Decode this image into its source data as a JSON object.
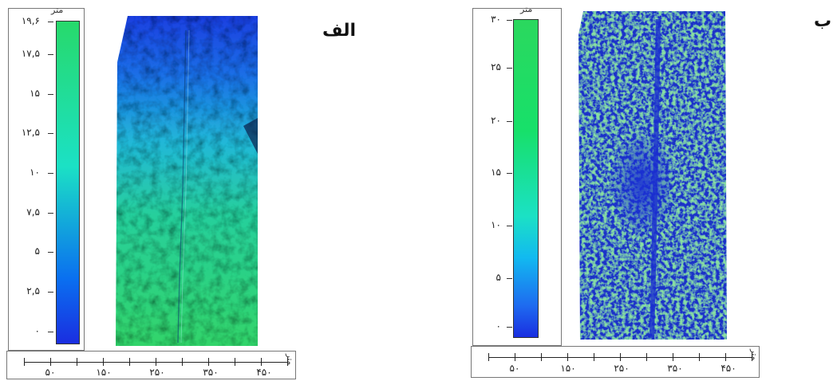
{
  "panels": [
    {
      "id": "alef",
      "label": "الف",
      "legend": {
        "unit": "متر",
        "ticks": [
          "۱۹,۶",
          "۱۷,۵",
          "۱۵",
          "۱۲,۵",
          "۱۰",
          "۷,۵",
          "۵",
          "۲,۵",
          "۰"
        ],
        "colors": [
          "#27d96b",
          "#1be1c5",
          "#0a6ff0",
          "#1a2ee0"
        ]
      },
      "scalebar": {
        "unit": "متر",
        "labels": [
          "۵۰",
          "۱۵۰",
          "۲۵۰",
          "۳۵۰",
          "۴۵۰"
        ]
      }
    },
    {
      "id": "be",
      "label": "ب",
      "legend": {
        "unit": "متر",
        "ticks": [
          "۳۰",
          "۲۵",
          "۲۰",
          "۱۵",
          "۱۰",
          "۵",
          "۰"
        ],
        "colors": [
          "#2bd85e",
          "#1be1c5",
          "#12b9f0",
          "#1a2ee0"
        ]
      },
      "scalebar": {
        "unit": "متر",
        "labels": [
          "۵۰",
          "۱۵۰",
          "۲۵۰",
          "۳۵۰",
          "۴۵۰"
        ]
      }
    }
  ]
}
